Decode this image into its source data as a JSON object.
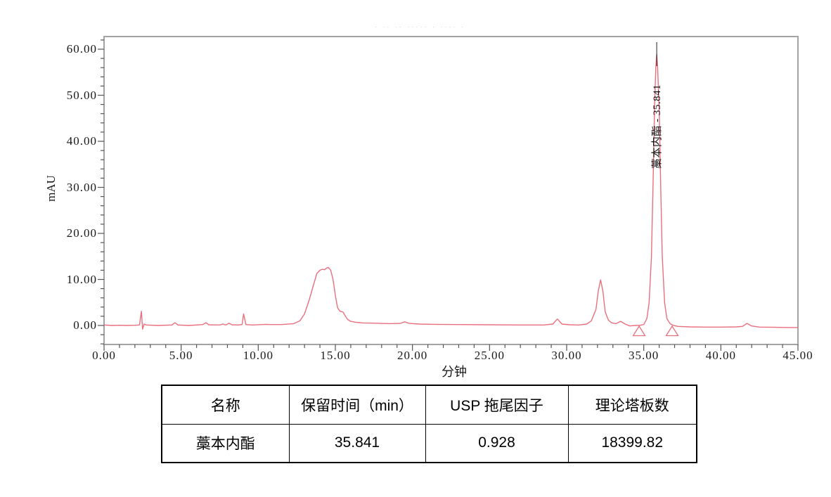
{
  "page": {
    "faint_header_text": "· ·· ·· ····· ·    ···· ·"
  },
  "chart": {
    "y_axis_title": "mAU",
    "x_axis_title": "分钟",
    "peak_label": "藁本内酯 - 35.841"
  },
  "chart_data": {
    "type": "line",
    "title": "",
    "xlabel": "分钟",
    "ylabel": "mAU",
    "xlim": [
      0,
      45
    ],
    "ylim": [
      -4.1,
      62.8
    ],
    "grid": false,
    "x_major_ticks": [
      0,
      5,
      10,
      15,
      20,
      25,
      30,
      35,
      40,
      45
    ],
    "x_tick_labels": [
      "0.00",
      "5.00",
      "10.00",
      "15.00",
      "20.00",
      "25.00",
      "30.00",
      "35.00",
      "40.00",
      "45.00"
    ],
    "x_minor_step": 1,
    "y_major_ticks": [
      0,
      10,
      20,
      30,
      40,
      50,
      60
    ],
    "y_tick_labels": [
      "0.00",
      "10.00",
      "20.00",
      "30.00",
      "40.00",
      "50.00",
      "60.00"
    ],
    "y_minor_step": 2,
    "line_color": "#ea6f7e",
    "frame_color": "#a3a3a3",
    "series": [
      {
        "points": [
          [
            0,
            0.1
          ],
          [
            0.5,
            0
          ],
          [
            1,
            0.05
          ],
          [
            1.5,
            0
          ],
          [
            2.0,
            0.05
          ],
          [
            2.3,
            0.1
          ],
          [
            2.42,
            3.1
          ],
          [
            2.5,
            -0.8
          ],
          [
            2.6,
            0.3
          ],
          [
            2.75,
            0.1
          ],
          [
            3.5,
            0
          ],
          [
            4.4,
            0.1
          ],
          [
            4.6,
            0.6
          ],
          [
            4.8,
            0.1
          ],
          [
            5.5,
            0
          ],
          [
            6.4,
            0.2
          ],
          [
            6.6,
            0.6
          ],
          [
            6.8,
            0.15
          ],
          [
            7.5,
            0.1
          ],
          [
            7.7,
            0.3
          ],
          [
            7.9,
            0.1
          ],
          [
            8.1,
            0.5
          ],
          [
            8.3,
            0.15
          ],
          [
            8.7,
            0.1
          ],
          [
            8.95,
            0.2
          ],
          [
            9.05,
            2.5
          ],
          [
            9.2,
            0.2
          ],
          [
            9.6,
            0.1
          ],
          [
            10.5,
            0.25
          ],
          [
            10.8,
            0.2
          ],
          [
            11.5,
            0.2
          ],
          [
            12.3,
            0.4
          ],
          [
            12.7,
            1.0
          ],
          [
            13.0,
            2.5
          ],
          [
            13.3,
            5.5
          ],
          [
            13.6,
            9.0
          ],
          [
            13.8,
            11.3
          ],
          [
            14.0,
            12.0
          ],
          [
            14.15,
            12.2
          ],
          [
            14.3,
            12.1
          ],
          [
            14.45,
            12.5
          ],
          [
            14.55,
            12.6
          ],
          [
            14.7,
            12.0
          ],
          [
            14.85,
            10.0
          ],
          [
            15.0,
            6.5
          ],
          [
            15.15,
            3.8
          ],
          [
            15.3,
            3.1
          ],
          [
            15.5,
            2.9
          ],
          [
            15.65,
            2.0
          ],
          [
            15.8,
            1.3
          ],
          [
            16.0,
            0.9
          ],
          [
            16.3,
            0.7
          ],
          [
            16.8,
            0.55
          ],
          [
            17.5,
            0.5
          ],
          [
            18.5,
            0.4
          ],
          [
            19.2,
            0.45
          ],
          [
            19.5,
            0.8
          ],
          [
            19.8,
            0.45
          ],
          [
            20.5,
            0.3
          ],
          [
            21.5,
            0.25
          ],
          [
            23,
            0.2
          ],
          [
            25,
            0.15
          ],
          [
            27,
            0.1
          ],
          [
            28.5,
            0.1
          ],
          [
            29.1,
            0.3
          ],
          [
            29.4,
            1.4
          ],
          [
            29.7,
            0.3
          ],
          [
            30.2,
            0.15
          ],
          [
            30.8,
            0.1
          ],
          [
            31.3,
            0.3
          ],
          [
            31.6,
            1.0
          ],
          [
            31.9,
            3.5
          ],
          [
            32.05,
            7.5
          ],
          [
            32.2,
            9.9
          ],
          [
            32.35,
            7.5
          ],
          [
            32.5,
            3.0
          ],
          [
            32.7,
            1.2
          ],
          [
            32.9,
            0.6
          ],
          [
            33.2,
            0.4
          ],
          [
            33.5,
            0.9
          ],
          [
            33.8,
            0.3
          ],
          [
            34.1,
            -0.1
          ],
          [
            34.4,
            0
          ],
          [
            34.75,
            0.05
          ],
          [
            35.0,
            0.2
          ],
          [
            35.2,
            1.5
          ],
          [
            35.35,
            5
          ],
          [
            35.5,
            15
          ],
          [
            35.6,
            30
          ],
          [
            35.7,
            47
          ],
          [
            35.78,
            56
          ],
          [
            35.841,
            58.9
          ],
          [
            35.9,
            56
          ],
          [
            36.0,
            47
          ],
          [
            36.1,
            30
          ],
          [
            36.2,
            15
          ],
          [
            36.35,
            5
          ],
          [
            36.5,
            1.5
          ],
          [
            36.7,
            0.4
          ],
          [
            36.9,
            0.05
          ],
          [
            37.2,
            -0.2
          ],
          [
            38,
            -0.3
          ],
          [
            39,
            -0.35
          ],
          [
            40,
            -0.35
          ],
          [
            41,
            -0.3
          ],
          [
            41.4,
            -0.2
          ],
          [
            41.7,
            0.45
          ],
          [
            42.0,
            -0.1
          ],
          [
            42.5,
            -0.35
          ],
          [
            43.5,
            -0.4
          ],
          [
            44.5,
            -0.45
          ],
          [
            45,
            -0.45
          ]
        ]
      }
    ],
    "peak_annotation": {
      "label": "藁本内酯 - 35.841",
      "time_min": 35.841,
      "apex_mau": 59
    },
    "integration_markers_min": [
      34.7,
      36.84
    ]
  },
  "table": {
    "headers": [
      "名称",
      "保留时间（min）",
      "USP 拖尾因子",
      "理论塔板数"
    ],
    "rows": [
      [
        "藁本内酯",
        "35.841",
        "0.928",
        "18399.82"
      ]
    ]
  }
}
